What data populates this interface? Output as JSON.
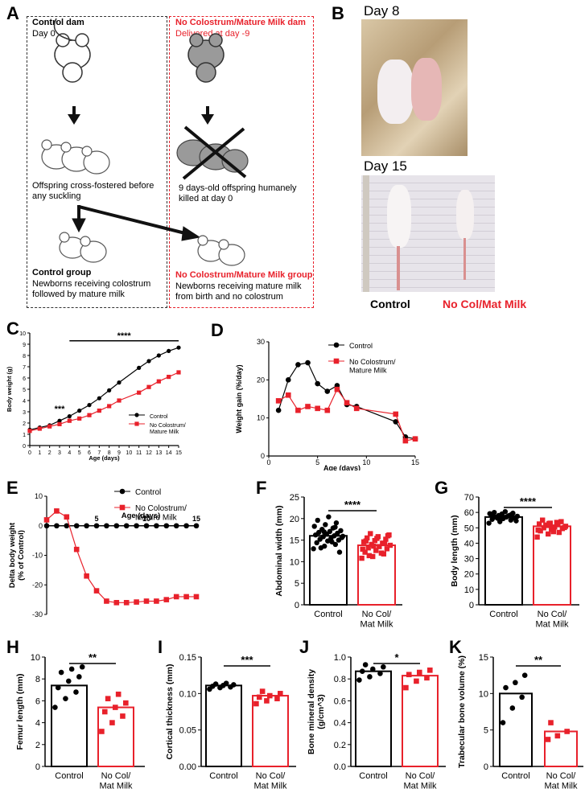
{
  "panels": {
    "A": "A",
    "B": "B",
    "C": "C",
    "D": "D",
    "E": "E",
    "F": "F",
    "G": "G",
    "H": "H",
    "I": "I",
    "J": "J",
    "K": "K"
  },
  "schematic": {
    "control_dam_title": "Control dam",
    "control_dam_day": "Day 0",
    "cross_fostered": "Offspring cross-fostered before any suckling",
    "control_group_title": "Control group",
    "control_group_desc": "Newborns receiving colostrum followed by mature milk",
    "ncm_dam_title": "No Colostrum/Mature Milk dam",
    "ncm_dam_day": "Delivered at day -9",
    "killed": "9 days-old offspring humanely killed at day 0",
    "ncm_group_title": "No Colostrum/Mature Milk group",
    "ncm_group_desc": "Newborns receiving mature milk from birth and no colostrum"
  },
  "photos": {
    "day8": "Day 8",
    "day15": "Day 15",
    "control": "Control",
    "ncm": "No Col/Mat Milk"
  },
  "colors": {
    "control": "#000000",
    "ncm": "#e8212b"
  },
  "chart_data": [
    {
      "id": "C",
      "type": "line",
      "xlabel": "Age (days)",
      "ylabel": "Body weight (g)",
      "xlim": [
        0,
        15
      ],
      "ylim": [
        0,
        10
      ],
      "xticks": [
        0,
        1,
        2,
        3,
        4,
        5,
        6,
        7,
        8,
        9,
        10,
        11,
        12,
        13,
        14,
        15
      ],
      "yticks": [
        0,
        1,
        2,
        3,
        4,
        5,
        6,
        7,
        8,
        9,
        10
      ],
      "series": [
        {
          "name": "Control",
          "x": [
            0,
            1,
            2,
            3,
            4,
            5,
            6,
            7,
            8,
            9,
            11,
            12,
            13,
            14,
            15
          ],
          "y": [
            1.4,
            1.6,
            1.8,
            2.2,
            2.6,
            3.1,
            3.6,
            4.2,
            4.9,
            5.6,
            6.9,
            7.5,
            8.0,
            8.4,
            8.7
          ]
        },
        {
          "name": "No Colostrum/\nMature Milk",
          "x": [
            0,
            1,
            2,
            3,
            4,
            5,
            6,
            7,
            8,
            9,
            11,
            12,
            13,
            14,
            15
          ],
          "y": [
            1.3,
            1.5,
            1.7,
            1.9,
            2.2,
            2.4,
            2.7,
            3.1,
            3.5,
            4.0,
            4.7,
            5.2,
            5.7,
            6.1,
            6.5
          ]
        }
      ],
      "annotations": [
        {
          "text": "****",
          "from": 4,
          "to": 15,
          "y": 9.3
        },
        {
          "text": "***",
          "x": 3,
          "y": 3.0
        }
      ]
    },
    {
      "id": "D",
      "type": "line",
      "xlabel": "Age (days)",
      "ylabel": "Weight gain (%/day)",
      "xlim": [
        0,
        15
      ],
      "ylim": [
        0,
        30
      ],
      "xticks": [
        0,
        5,
        10,
        15
      ],
      "yticks": [
        0,
        10,
        20,
        30
      ],
      "series": [
        {
          "name": "Control",
          "x": [
            1,
            2,
            3,
            4,
            5,
            6,
            7,
            8,
            9,
            13,
            14,
            15
          ],
          "y": [
            12,
            20,
            24,
            24.5,
            19,
            17,
            18.5,
            13.5,
            13,
            9,
            5,
            4.5
          ]
        },
        {
          "name": "No Colostrum/\nMature Milk",
          "x": [
            1,
            2,
            3,
            4,
            5,
            6,
            7,
            8,
            9,
            13,
            14,
            15
          ],
          "y": [
            14.5,
            16,
            12,
            13,
            12.5,
            12,
            17.5,
            14,
            12.5,
            11,
            4,
            4.5
          ]
        }
      ]
    },
    {
      "id": "E",
      "type": "line",
      "xlabel": "Age (days)",
      "ylabel": "Delta body weight\n(% of Control)",
      "xlim": [
        0,
        15
      ],
      "ylim": [
        -30,
        10
      ],
      "xticks": [
        5,
        10,
        15
      ],
      "yticks": [
        10,
        0,
        -10,
        -20,
        -30
      ],
      "series": [
        {
          "name": "Control",
          "x": [
            0,
            1,
            2,
            3,
            4,
            5,
            6,
            7,
            8,
            9,
            10,
            11,
            12,
            13,
            14,
            15
          ],
          "y": [
            0,
            0,
            0,
            0,
            0,
            0,
            0,
            0,
            0,
            0,
            0,
            0,
            0,
            0,
            0,
            0
          ]
        },
        {
          "name": "No Colostrum/\nMature Milk",
          "x": [
            0,
            1,
            2,
            3,
            4,
            5,
            6,
            7,
            8,
            9,
            10,
            11,
            12,
            13,
            14,
            15
          ],
          "y": [
            2,
            5,
            3,
            -8,
            -17,
            -22,
            -25.5,
            -26,
            -26,
            -25.8,
            -25.5,
            -25.5,
            -25,
            -24,
            -24,
            -24
          ]
        }
      ]
    },
    {
      "id": "F",
      "type": "bar",
      "ylabel": "Abdominal width (mm)",
      "categories": [
        "Control",
        "No Col/\nMat Milk"
      ],
      "values": [
        16,
        13.8
      ],
      "ylim": [
        0,
        25
      ],
      "yticks": [
        0,
        5,
        10,
        15,
        20,
        25
      ],
      "significance": "****",
      "points": [
        [
          13.0,
          13.6,
          14.0,
          14.4,
          14.8,
          15.0,
          15.2,
          15.4,
          15.6,
          15.8,
          16.0,
          16.2,
          16.4,
          16.6,
          16.8,
          17.0,
          17.2,
          17.5,
          17.8,
          18.2,
          18.6,
          19.0,
          19.6,
          20.4,
          12.2,
          13.2,
          14.6,
          15.9,
          16.9,
          18.0
        ],
        [
          10.8,
          11.2,
          11.8,
          12.2,
          12.6,
          13.0,
          13.2,
          13.5,
          13.8,
          14.0,
          14.3,
          14.6,
          14.9,
          15.2,
          15.5,
          15.8,
          16.2,
          16.5,
          12.0,
          12.9,
          13.6,
          14.2,
          14.8,
          15.4,
          16.0,
          11.4
        ]
      ]
    },
    {
      "id": "G",
      "type": "bar",
      "ylabel": "Body length (mm)",
      "categories": [
        "Control",
        "No Col/\nMat Milk"
      ],
      "values": [
        57,
        51
      ],
      "ylim": [
        0,
        70
      ],
      "yticks": [
        0,
        10,
        20,
        30,
        40,
        50,
        60,
        70
      ],
      "significance": "****",
      "points": [
        [
          53,
          54,
          55,
          55.5,
          56,
          56.5,
          57,
          57,
          57.5,
          58,
          58,
          58.5,
          59,
          59.5,
          60,
          60.5,
          54.5,
          56.2,
          57.8,
          59.2,
          55.8,
          58.8,
          57.3,
          56.8
        ],
        [
          44,
          46,
          47,
          48,
          49,
          49.5,
          50,
          50.5,
          51,
          51.5,
          52,
          52.5,
          53,
          54,
          55,
          47.5,
          50.2,
          51.8,
          53.5,
          48.5,
          52.8
        ]
      ]
    },
    {
      "id": "H",
      "type": "bar",
      "ylabel": "Femur length  (mm)",
      "categories": [
        "Control",
        "No Col/\nMat Milk"
      ],
      "values": [
        7.4,
        5.4
      ],
      "ylim": [
        0,
        10
      ],
      "yticks": [
        0,
        2,
        4,
        6,
        8,
        10
      ],
      "significance": "**",
      "points": [
        [
          5.4,
          6.2,
          6.8,
          7.2,
          7.8,
          8.2,
          8.6,
          8.9,
          9.1
        ],
        [
          3.2,
          4.0,
          4.6,
          5.0,
          5.4,
          5.8,
          6.2,
          6.6
        ]
      ]
    },
    {
      "id": "I",
      "type": "bar",
      "ylabel": "Cortical thickness (mm)",
      "categories": [
        "Control",
        "No Col/\nMat Milk"
      ],
      "values": [
        0.111,
        0.097
      ],
      "ylim": [
        0,
        0.15
      ],
      "yticks": [
        0.0,
        0.05,
        0.1,
        0.15
      ],
      "significance": "***",
      "points": [
        [
          0.106,
          0.108,
          0.109,
          0.11,
          0.111,
          0.112,
          0.113,
          0.114
        ],
        [
          0.086,
          0.09,
          0.093,
          0.095,
          0.097,
          0.1,
          0.103
        ]
      ]
    },
    {
      "id": "J",
      "type": "bar",
      "ylabel": "Bone mineral density\n(g/cm^3)",
      "categories": [
        "Control",
        "No Col/\nMat Milk"
      ],
      "values": [
        0.87,
        0.83
      ],
      "ylim": [
        0,
        1.0
      ],
      "yticks": [
        0.0,
        0.2,
        0.4,
        0.6,
        0.8,
        1.0
      ],
      "significance": "*",
      "points": [
        [
          0.79,
          0.82,
          0.85,
          0.87,
          0.89,
          0.91,
          0.93
        ],
        [
          0.72,
          0.78,
          0.81,
          0.84,
          0.86,
          0.88
        ]
      ]
    },
    {
      "id": "K",
      "type": "bar",
      "ylabel": "Trabecular bone volume (%)",
      "categories": [
        "Control",
        "No Col/\nMat Milk"
      ],
      "values": [
        10,
        4.8
      ],
      "ylim": [
        0,
        15
      ],
      "yticks": [
        0,
        5,
        10,
        15
      ],
      "significance": "**",
      "points": [
        [
          6.0,
          8.0,
          9.5,
          10.8,
          11.5,
          12.5
        ],
        [
          3.7,
          4.2,
          4.8,
          6.0
        ]
      ]
    }
  ]
}
